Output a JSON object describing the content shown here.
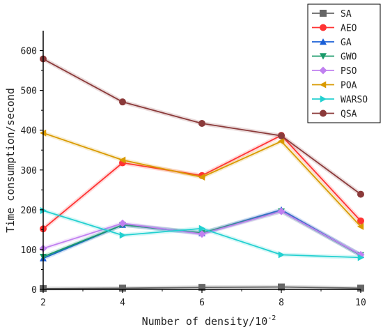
{
  "chart_data": {
    "type": "line",
    "title": "",
    "xlabel": "Number of density/10",
    "xlabel_superscript": "-2",
    "ylabel": "Time consumption/second",
    "x": [
      2,
      4,
      6,
      8,
      10
    ],
    "xlim": [
      2,
      10
    ],
    "ylim": [
      0,
      650
    ],
    "xticks": [
      2,
      4,
      6,
      8,
      10
    ],
    "yticks": [
      0,
      100,
      200,
      300,
      400,
      500,
      600
    ],
    "grid": false,
    "legend_position": "top-right",
    "series": [
      {
        "name": "SA",
        "color": "#666666",
        "marker": "square",
        "values": [
          2,
          3,
          5,
          6,
          3
        ]
      },
      {
        "name": "AEO",
        "color": "#ff3333",
        "marker": "circle",
        "values": [
          152,
          318,
          286,
          387,
          172
        ]
      },
      {
        "name": "GA",
        "color": "#1a5fd6",
        "marker": "triangle-up",
        "values": [
          78,
          162,
          141,
          200,
          86
        ]
      },
      {
        "name": "GWO",
        "color": "#1a9a6a",
        "marker": "triangle-down",
        "values": [
          82,
          162,
          142,
          196,
          86
        ]
      },
      {
        "name": "PSO",
        "color": "#c080f0",
        "marker": "diamond",
        "values": [
          103,
          166,
          139,
          196,
          87
        ]
      },
      {
        "name": "POA",
        "color": "#d99a00",
        "marker": "triangle-left",
        "values": [
          393,
          325,
          282,
          372,
          158
        ]
      },
      {
        "name": "WARSO",
        "color": "#22d0d0",
        "marker": "triangle-right",
        "values": [
          198,
          136,
          153,
          87,
          80
        ]
      },
      {
        "name": "QSA",
        "color": "#8b3a3a",
        "marker": "circle",
        "values": [
          579,
          471,
          417,
          386,
          239
        ]
      }
    ]
  }
}
